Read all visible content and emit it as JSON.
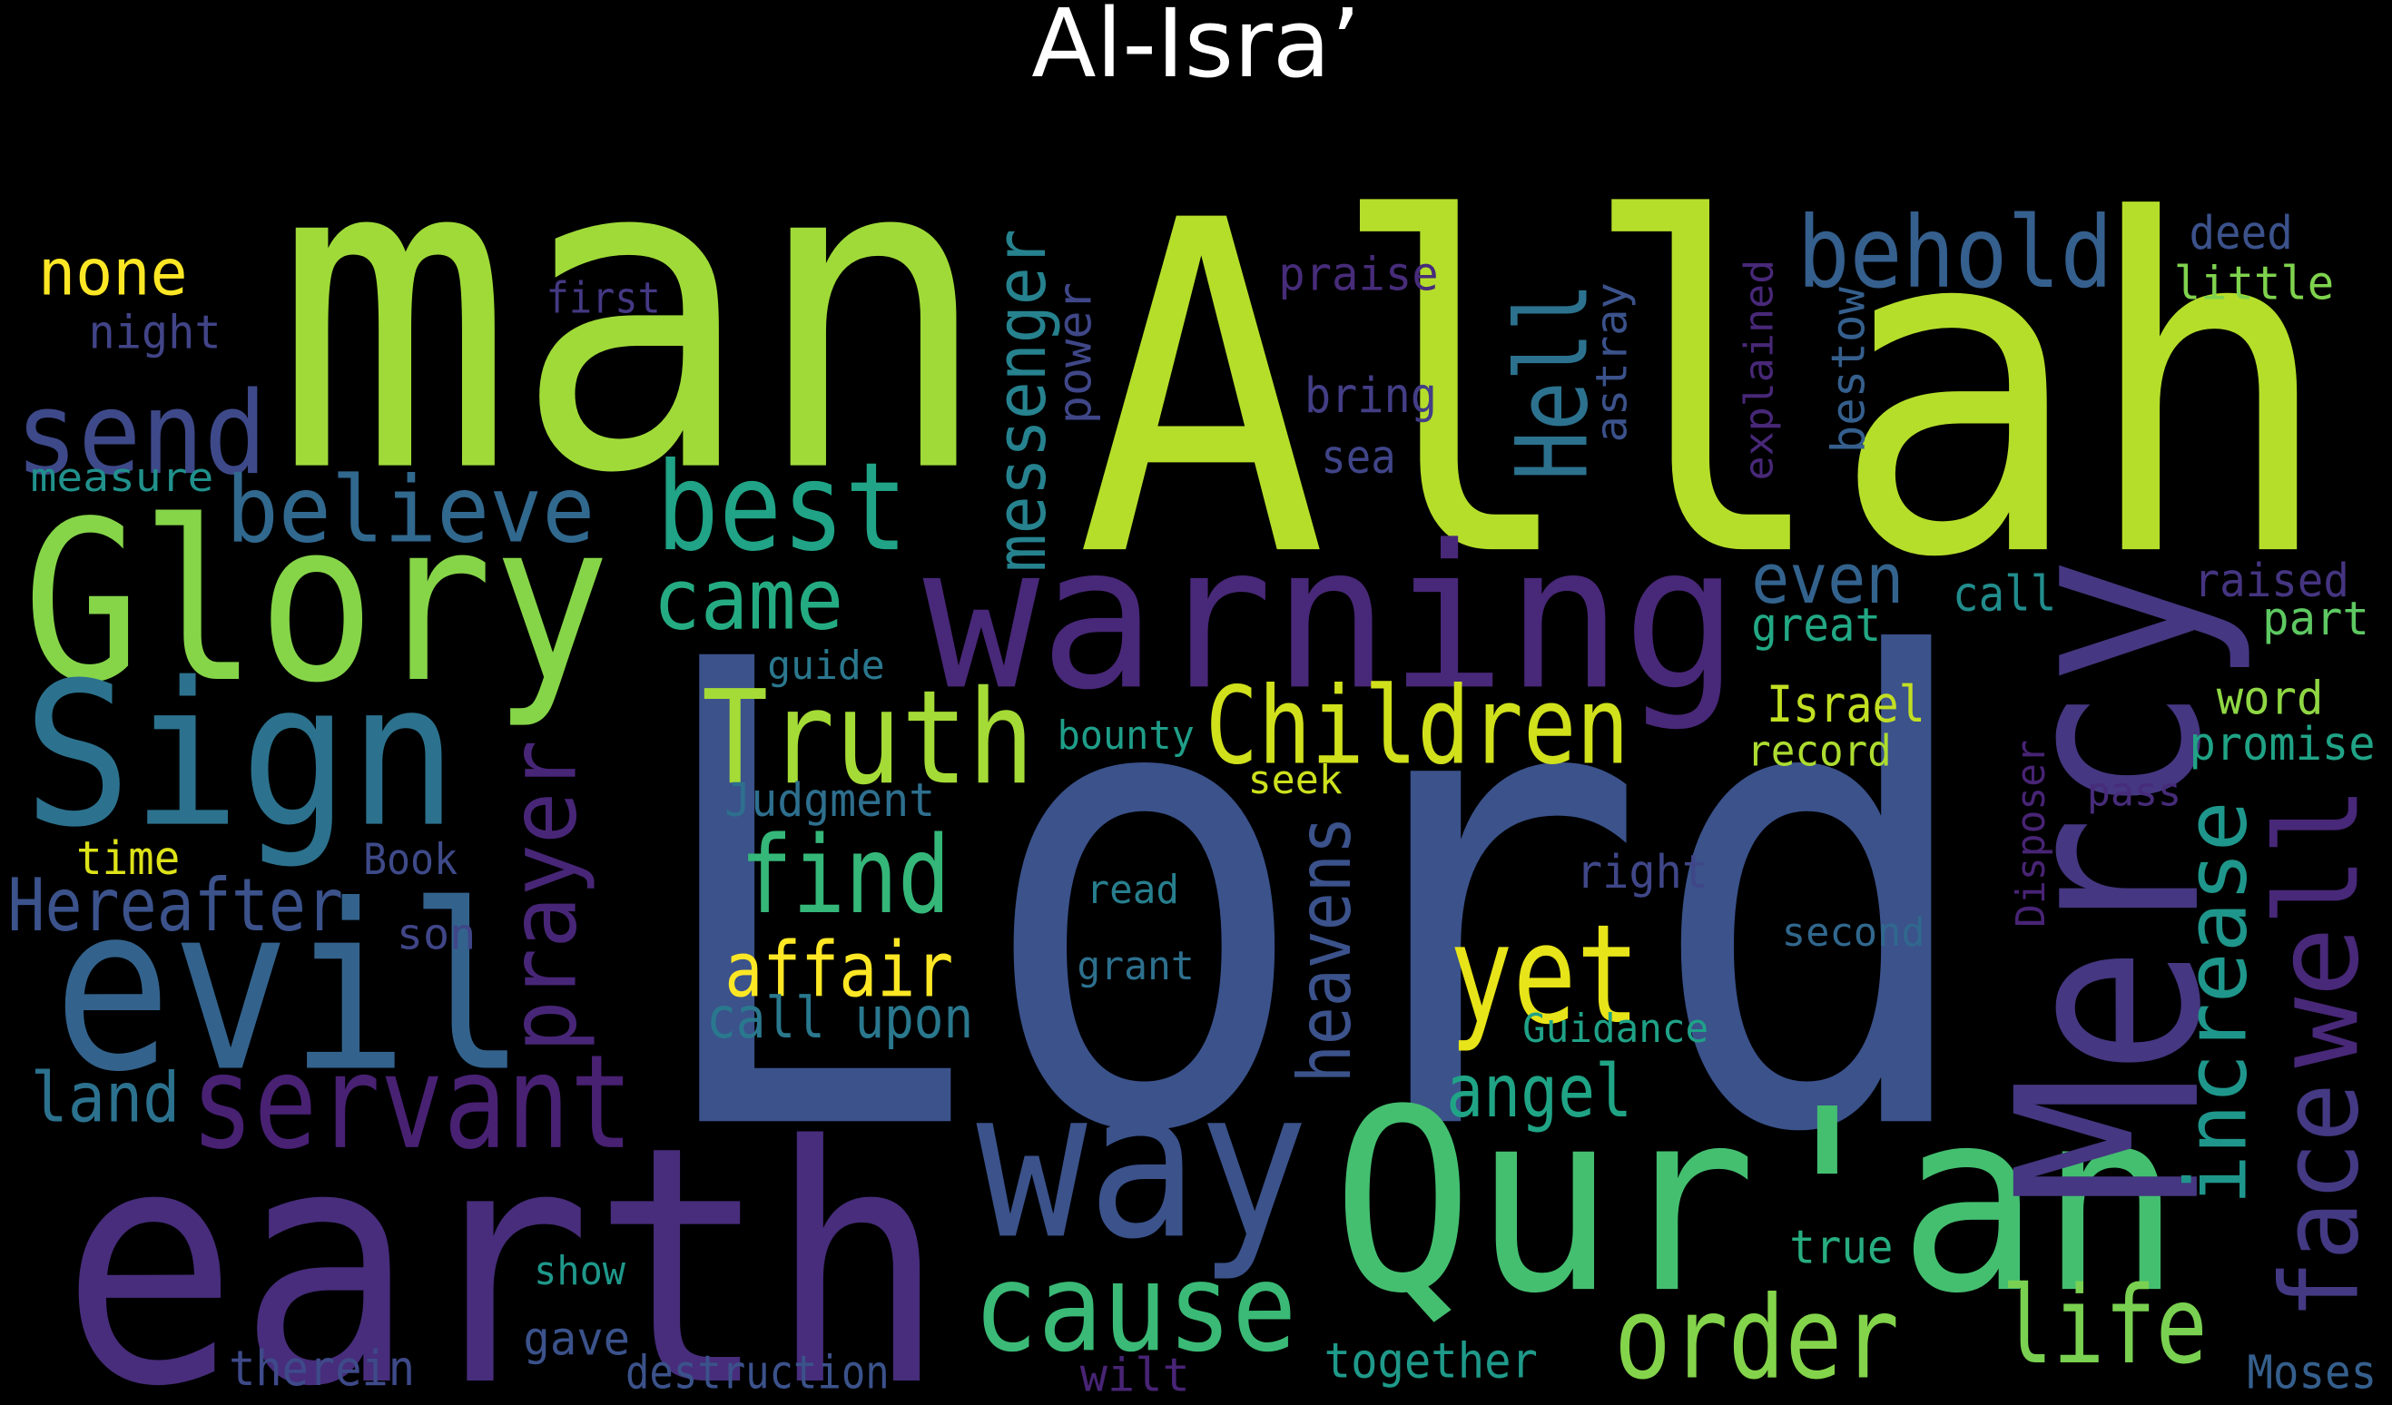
{
  "chart_data": {
    "type": "wordcloud",
    "title": "Al-Isra’",
    "background": "#000000",
    "words": [
      {
        "text": "Lord",
        "color": "#3b528b"
      },
      {
        "text": "Allah",
        "color": "#b5de2b"
      },
      {
        "text": "man",
        "color": "#a0da39"
      },
      {
        "text": "earth",
        "color": "#472d7b"
      },
      {
        "text": "Glory",
        "color": "#86d549"
      },
      {
        "text": "Sign",
        "color": "#2c728e"
      },
      {
        "text": "evil",
        "color": "#33638d"
      },
      {
        "text": "warning",
        "color": "#482878"
      },
      {
        "text": "Qur'an",
        "color": "#44bf70"
      },
      {
        "text": "Mercy",
        "color": "#453781"
      },
      {
        "text": "way",
        "color": "#3b528b"
      },
      {
        "text": "send",
        "color": "#3e4989"
      },
      {
        "text": "best",
        "color": "#20a386"
      },
      {
        "text": "believe",
        "color": "#31688e"
      },
      {
        "text": "behold",
        "color": "#355f8d"
      },
      {
        "text": "none",
        "color": "#fde725"
      },
      {
        "text": "night",
        "color": "#414487"
      },
      {
        "text": "first",
        "color": "#443983"
      },
      {
        "text": "measure",
        "color": "#21918c"
      },
      {
        "text": "came",
        "color": "#25ab82"
      },
      {
        "text": "Truth",
        "color": "#a5db36"
      },
      {
        "text": "Children",
        "color": "#d0e11c"
      },
      {
        "text": "find",
        "color": "#35b779"
      },
      {
        "text": "affair",
        "color": "#fde725"
      },
      {
        "text": "call upon",
        "color": "#2a788e"
      },
      {
        "text": "Judgment",
        "color": "#2e6f8e"
      },
      {
        "text": "guide",
        "color": "#2a788e"
      },
      {
        "text": "bounty",
        "color": "#1f9e89"
      },
      {
        "text": "servant",
        "color": "#482173"
      },
      {
        "text": "land",
        "color": "#2c728e"
      },
      {
        "text": "Hereafter",
        "color": "#3b528b"
      },
      {
        "text": "time",
        "color": "#dde318"
      },
      {
        "text": "Book",
        "color": "#3e4a89"
      },
      {
        "text": "son",
        "color": "#404688"
      },
      {
        "text": "cause",
        "color": "#3aba76"
      },
      {
        "text": "order",
        "color": "#84d44b"
      },
      {
        "text": "life",
        "color": "#7ad151"
      },
      {
        "text": "yet",
        "color": "#e7e419"
      },
      {
        "text": "angel",
        "color": "#20a486"
      },
      {
        "text": "Guidance",
        "color": "#1fa287"
      },
      {
        "text": "even",
        "color": "#33638d"
      },
      {
        "text": "great",
        "color": "#22a884"
      },
      {
        "text": "call",
        "color": "#228c8d"
      },
      {
        "text": "Israel",
        "color": "#c2df23"
      },
      {
        "text": "record",
        "color": "#addc30"
      },
      {
        "text": "seek",
        "color": "#cde11d"
      },
      {
        "text": "right",
        "color": "#3f4788"
      },
      {
        "text": "read",
        "color": "#277f8e"
      },
      {
        "text": "grant",
        "color": "#2d708e"
      },
      {
        "text": "second",
        "color": "#31688e"
      },
      {
        "text": "true",
        "color": "#27ad81"
      },
      {
        "text": "show",
        "color": "#1f988b"
      },
      {
        "text": "gave",
        "color": "#3b528b"
      },
      {
        "text": "therein",
        "color": "#3e4a89"
      },
      {
        "text": "destruction",
        "color": "#3b528b"
      },
      {
        "text": "wilt",
        "color": "#482475"
      },
      {
        "text": "together",
        "color": "#1f9a8a"
      },
      {
        "text": "Moses",
        "color": "#355f8d"
      },
      {
        "text": "praise",
        "color": "#472c7a"
      },
      {
        "text": "bring",
        "color": "#433e85"
      },
      {
        "text": "sea",
        "color": "#404588"
      },
      {
        "text": "deed",
        "color": "#3b528b"
      },
      {
        "text": "little",
        "color": "#7fd34e"
      },
      {
        "text": "raised",
        "color": "#453581"
      },
      {
        "text": "part",
        "color": "#5ec962"
      },
      {
        "text": "word",
        "color": "#8fd744"
      },
      {
        "text": "promise",
        "color": "#20a386"
      },
      {
        "text": "pass",
        "color": "#472c7a"
      },
      {
        "text": "messenger",
        "color": "#26828e"
      },
      {
        "text": "power",
        "color": "#3f4788"
      },
      {
        "text": "Hell",
        "color": "#2c728e"
      },
      {
        "text": "astray",
        "color": "#3b528b"
      },
      {
        "text": "explained",
        "color": "#482878"
      },
      {
        "text": "bestow",
        "color": "#355f8d"
      },
      {
        "text": "prayer",
        "color": "#482677"
      },
      {
        "text": "heavens",
        "color": "#3b528b"
      },
      {
        "text": "increase",
        "color": "#1f968b"
      },
      {
        "text": "face",
        "color": "#443983"
      },
      {
        "text": "well",
        "color": "#482878"
      },
      {
        "text": "Disposer",
        "color": "#482475"
      }
    ]
  }
}
